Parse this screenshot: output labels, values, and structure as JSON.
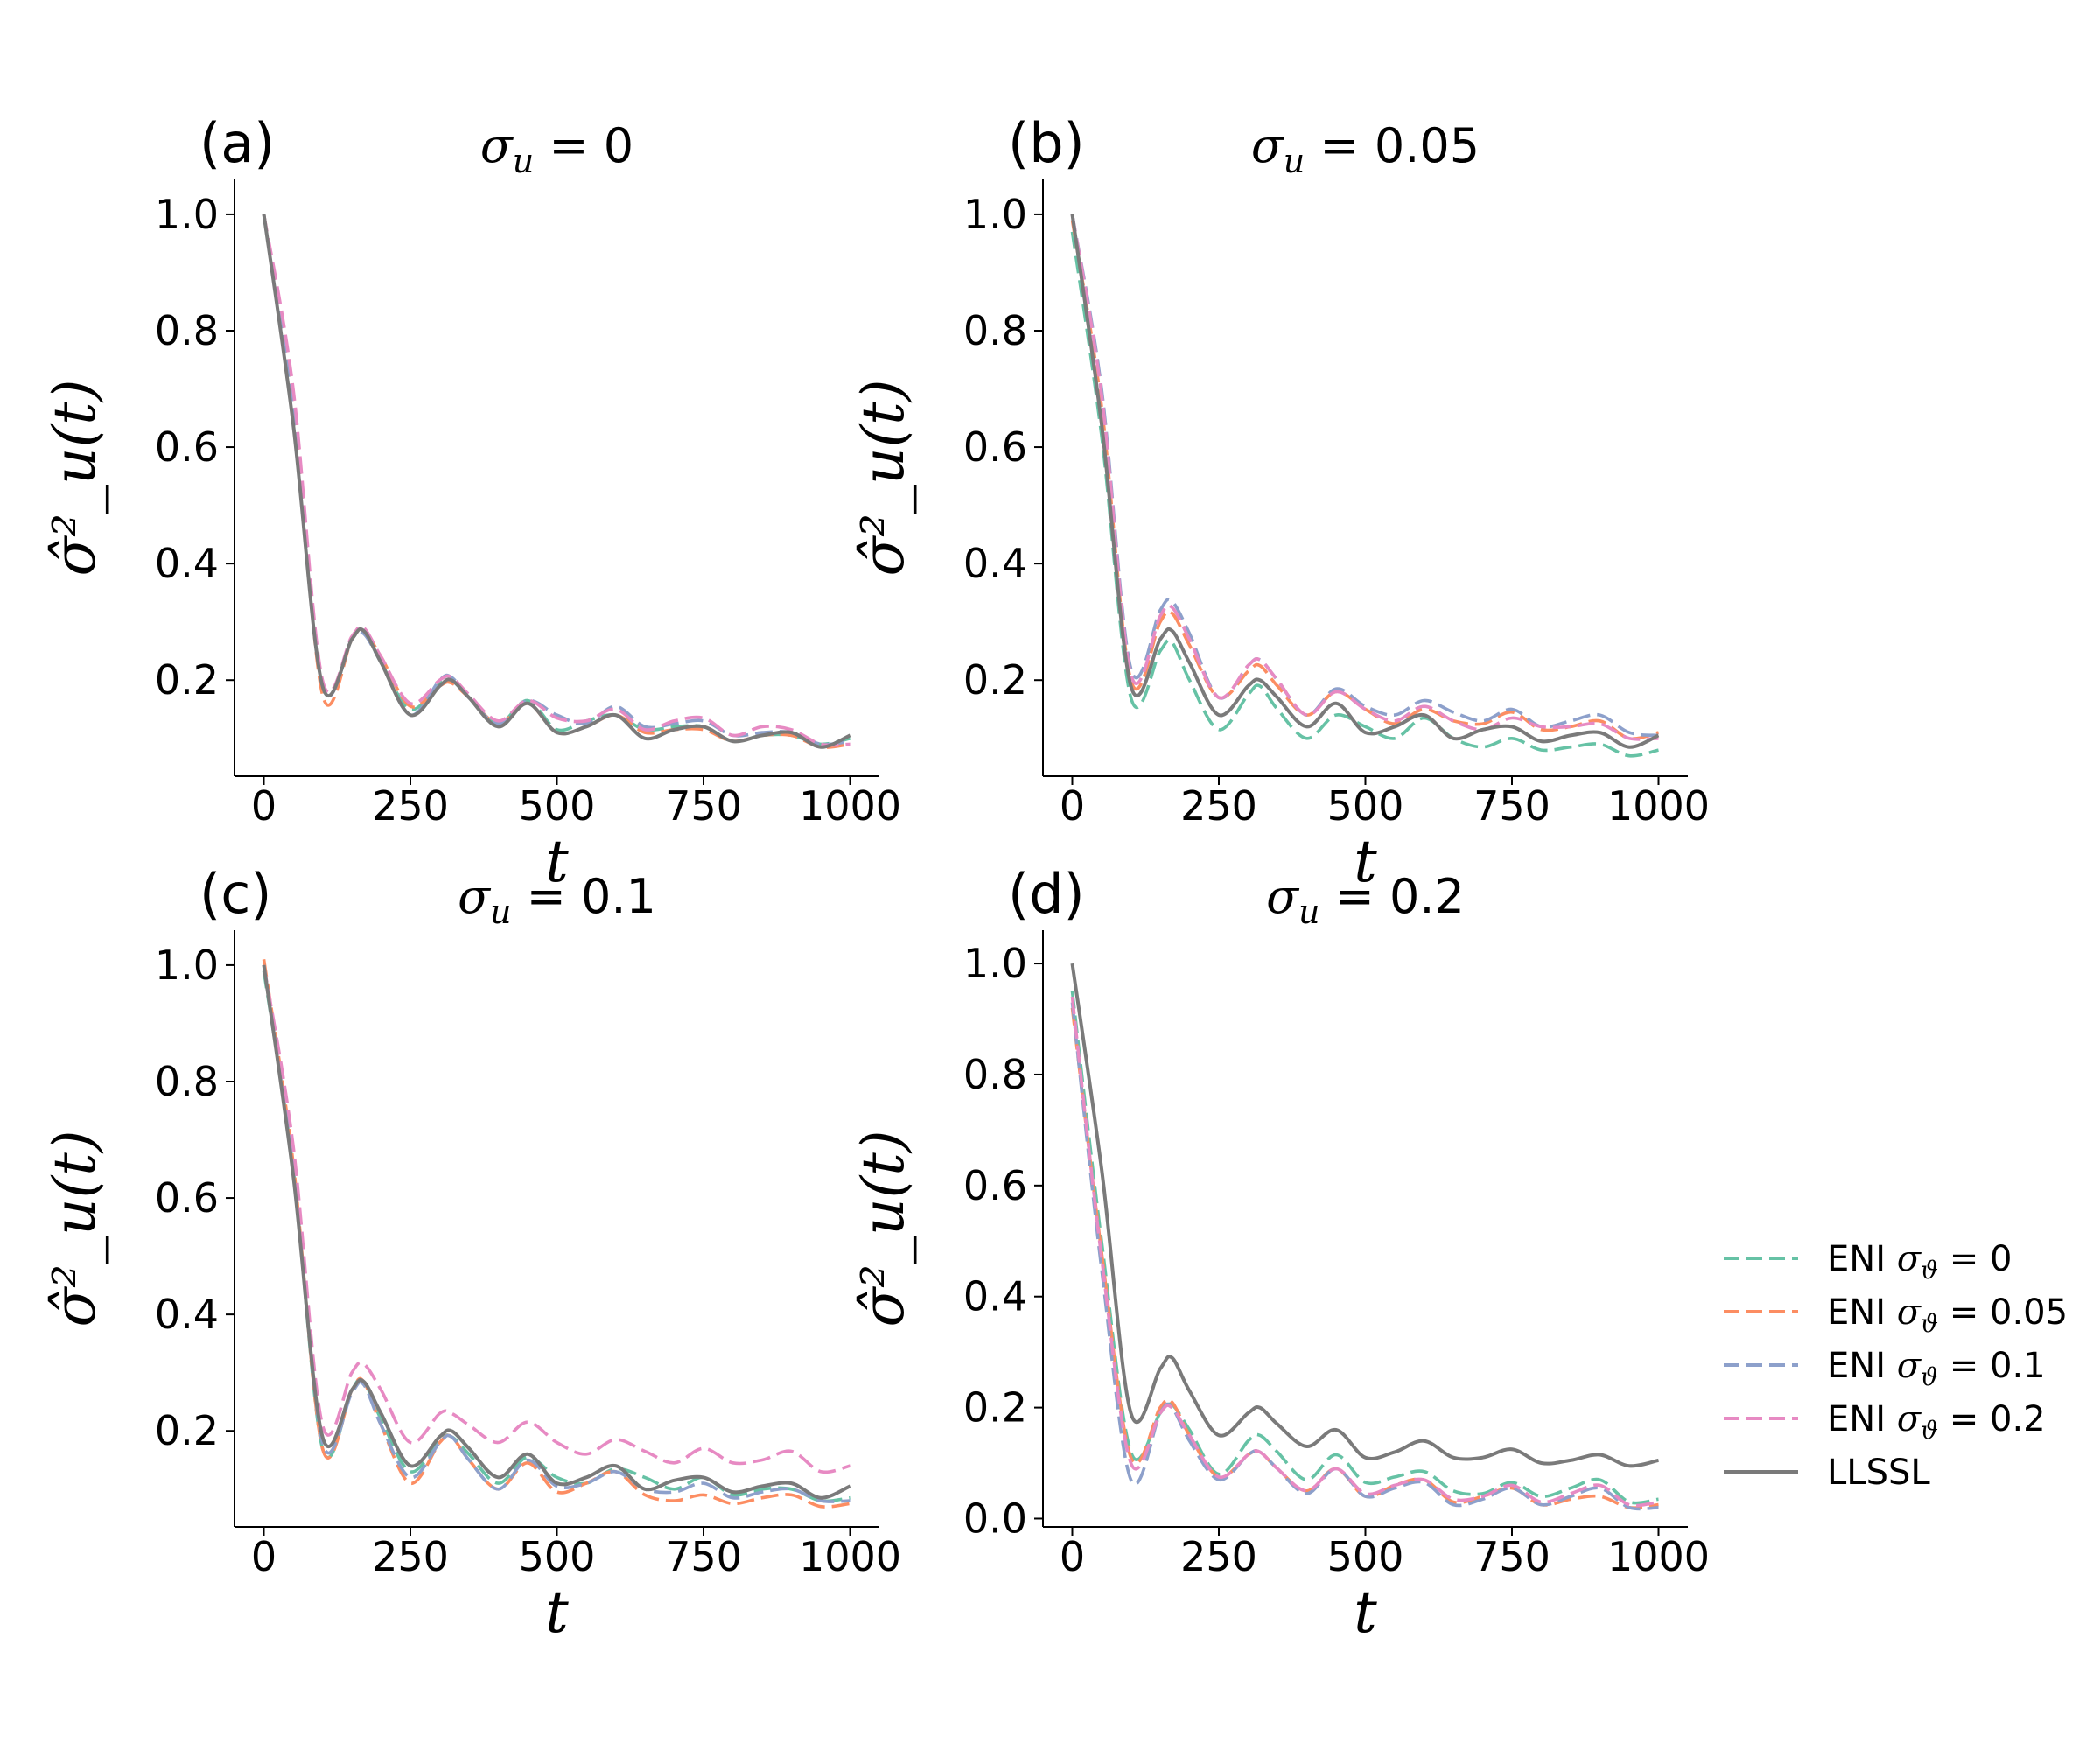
{
  "chart_data": [
    {
      "type": "line",
      "panel_label": "(a)",
      "title": "σ_u = 0",
      "title_parts": {
        "symbol": "σ",
        "subscript": "u",
        "rest": " = 0"
      },
      "xlabel": "t",
      "ylabel": "σ̂²_u(t)",
      "xlim": [
        -50,
        1050
      ],
      "ylim": [
        0.035,
        1.06
      ],
      "xticks": [
        0,
        250,
        500,
        750,
        1000
      ],
      "xtick_labels": [
        "0",
        "250",
        "500",
        "750",
        "1000"
      ],
      "yticks": [
        0.2,
        0.4,
        0.6,
        0.8,
        1.0
      ],
      "ytick_labels": [
        "0.2",
        "0.4",
        "0.6",
        "0.8",
        "1.0"
      ],
      "x": [
        0,
        50,
        100,
        150,
        170,
        200,
        250,
        300,
        320,
        350,
        400,
        450,
        500,
        550,
        600,
        650,
        700,
        750,
        800,
        850,
        900,
        950,
        1000
      ],
      "series": [
        {
          "name": "ENI σϑ = 0",
          "values": [
            1.0,
            0.65,
            0.19,
            0.27,
            0.285,
            0.23,
            0.15,
            0.195,
            0.2,
            0.17,
            0.125,
            0.165,
            0.115,
            0.13,
            0.14,
            0.115,
            0.12,
            0.12,
            0.095,
            0.105,
            0.105,
            0.09,
            0.1
          ]
        },
        {
          "name": "ENI σϑ = 0.05",
          "values": [
            1.0,
            0.68,
            0.175,
            0.27,
            0.285,
            0.24,
            0.155,
            0.19,
            0.195,
            0.17,
            0.125,
            0.16,
            0.11,
            0.12,
            0.14,
            0.11,
            0.115,
            0.115,
            0.095,
            0.105,
            0.105,
            0.085,
            0.09
          ]
        },
        {
          "name": "ENI σϑ = 0.1",
          "values": [
            1.0,
            0.66,
            0.19,
            0.27,
            0.28,
            0.23,
            0.14,
            0.2,
            0.205,
            0.17,
            0.125,
            0.165,
            0.14,
            0.125,
            0.155,
            0.12,
            0.125,
            0.13,
            0.105,
            0.11,
            0.11,
            0.09,
            0.095
          ]
        },
        {
          "name": "ENI σϑ = 0.2",
          "values": [
            1.0,
            0.7,
            0.2,
            0.275,
            0.29,
            0.24,
            0.16,
            0.2,
            0.205,
            0.175,
            0.13,
            0.165,
            0.135,
            0.13,
            0.15,
            0.115,
            0.13,
            0.135,
            0.105,
            0.12,
            0.115,
            0.09,
            0.09
          ]
        },
        {
          "name": "LLSSL",
          "values": [
            1.0,
            0.64,
            0.19,
            0.27,
            0.285,
            0.23,
            0.14,
            0.19,
            0.2,
            0.17,
            0.12,
            0.16,
            0.11,
            0.12,
            0.14,
            0.1,
            0.115,
            0.12,
            0.095,
            0.105,
            0.11,
            0.085,
            0.105
          ]
        }
      ]
    },
    {
      "type": "line",
      "panel_label": "(b)",
      "title": "σ_u = 0.05",
      "title_parts": {
        "symbol": "σ",
        "subscript": "u",
        "rest": " = 0.05"
      },
      "xlabel": "t",
      "ylabel": "σ̂²_u(t)",
      "xlim": [
        -50,
        1050
      ],
      "ylim": [
        0.035,
        1.06
      ],
      "xticks": [
        0,
        250,
        500,
        750,
        1000
      ],
      "xtick_labels": [
        "0",
        "250",
        "500",
        "750",
        "1000"
      ],
      "yticks": [
        0.2,
        0.4,
        0.6,
        0.8,
        1.0
      ],
      "ytick_labels": [
        "0.2",
        "0.4",
        "0.6",
        "0.8",
        "1.0"
      ],
      "x": [
        0,
        50,
        100,
        150,
        170,
        200,
        250,
        300,
        320,
        350,
        400,
        450,
        500,
        550,
        600,
        650,
        700,
        750,
        800,
        850,
        900,
        950,
        1000
      ],
      "series": [
        {
          "name": "ENI σϑ = 0",
          "values": [
            0.97,
            0.62,
            0.17,
            0.25,
            0.265,
            0.2,
            0.115,
            0.175,
            0.19,
            0.15,
            0.1,
            0.14,
            0.12,
            0.1,
            0.135,
            0.1,
            0.085,
            0.1,
            0.08,
            0.085,
            0.09,
            0.07,
            0.08
          ]
        },
        {
          "name": "ENI σϑ = 0.05",
          "values": [
            0.99,
            0.67,
            0.2,
            0.3,
            0.315,
            0.26,
            0.17,
            0.215,
            0.225,
            0.19,
            0.14,
            0.18,
            0.15,
            0.125,
            0.15,
            0.13,
            0.125,
            0.145,
            0.115,
            0.12,
            0.13,
            0.1,
            0.11
          ]
        },
        {
          "name": "ENI σϑ = 0.1",
          "values": [
            1.0,
            0.7,
            0.22,
            0.32,
            0.335,
            0.28,
            0.17,
            0.225,
            0.235,
            0.2,
            0.14,
            0.185,
            0.155,
            0.14,
            0.165,
            0.145,
            0.13,
            0.15,
            0.12,
            0.13,
            0.14,
            0.11,
            0.105
          ]
        },
        {
          "name": "ENI σϑ = 0.2",
          "values": [
            1.0,
            0.69,
            0.21,
            0.31,
            0.325,
            0.27,
            0.17,
            0.225,
            0.235,
            0.2,
            0.14,
            0.18,
            0.15,
            0.13,
            0.155,
            0.13,
            0.115,
            0.135,
            0.12,
            0.12,
            0.125,
            0.1,
            0.1
          ]
        },
        {
          "name": "LLSSL",
          "values": [
            1.0,
            0.64,
            0.19,
            0.27,
            0.285,
            0.23,
            0.14,
            0.19,
            0.2,
            0.17,
            0.12,
            0.16,
            0.11,
            0.12,
            0.14,
            0.1,
            0.115,
            0.12,
            0.095,
            0.105,
            0.11,
            0.085,
            0.105
          ]
        }
      ]
    },
    {
      "type": "line",
      "panel_label": "(c)",
      "title": "σ_u = 0.1",
      "title_parts": {
        "symbol": "σ",
        "subscript": "u",
        "rest": " = 0.1"
      },
      "xlabel": "t",
      "ylabel": "σ̂²_u(t)",
      "xlim": [
        -50,
        1050
      ],
      "ylim": [
        0.035,
        1.06
      ],
      "xticks": [
        0,
        250,
        500,
        750,
        1000
      ],
      "xtick_labels": [
        "0",
        "250",
        "500",
        "750",
        "1000"
      ],
      "yticks": [
        0.2,
        0.4,
        0.6,
        0.8,
        1.0
      ],
      "ytick_labels": [
        "0.2",
        "0.4",
        "0.6",
        "0.8",
        "1.0"
      ],
      "x": [
        0,
        50,
        100,
        150,
        170,
        200,
        250,
        300,
        320,
        350,
        400,
        450,
        500,
        550,
        600,
        650,
        700,
        750,
        800,
        850,
        900,
        950,
        1000
      ],
      "series": [
        {
          "name": "ENI σϑ = 0",
          "values": [
            0.99,
            0.65,
            0.17,
            0.27,
            0.285,
            0.22,
            0.13,
            0.185,
            0.19,
            0.16,
            0.11,
            0.155,
            0.12,
            0.11,
            0.135,
            0.12,
            0.1,
            0.12,
            0.09,
            0.1,
            0.1,
            0.08,
            0.085
          ]
        },
        {
          "name": "ENI σϑ = 0.05",
          "values": [
            1.01,
            0.66,
            0.17,
            0.27,
            0.285,
            0.21,
            0.11,
            0.18,
            0.19,
            0.15,
            0.1,
            0.145,
            0.095,
            0.11,
            0.13,
            0.09,
            0.08,
            0.09,
            0.075,
            0.085,
            0.09,
            0.07,
            0.075
          ]
        },
        {
          "name": "ENI σϑ = 0.1",
          "values": [
            1.0,
            0.66,
            0.18,
            0.265,
            0.28,
            0.21,
            0.12,
            0.18,
            0.19,
            0.15,
            0.1,
            0.15,
            0.105,
            0.11,
            0.13,
            0.1,
            0.095,
            0.11,
            0.085,
            0.095,
            0.1,
            0.08,
            0.08
          ]
        },
        {
          "name": "ENI σϑ = 0.2",
          "values": [
            1.0,
            0.69,
            0.21,
            0.3,
            0.315,
            0.27,
            0.18,
            0.23,
            0.23,
            0.21,
            0.18,
            0.215,
            0.18,
            0.16,
            0.185,
            0.165,
            0.145,
            0.17,
            0.145,
            0.15,
            0.165,
            0.13,
            0.14
          ]
        },
        {
          "name": "LLSSL",
          "values": [
            1.0,
            0.64,
            0.19,
            0.27,
            0.285,
            0.23,
            0.14,
            0.19,
            0.2,
            0.17,
            0.12,
            0.16,
            0.11,
            0.12,
            0.14,
            0.1,
            0.115,
            0.12,
            0.095,
            0.105,
            0.11,
            0.085,
            0.105
          ]
        }
      ]
    },
    {
      "type": "line",
      "panel_label": "(d)",
      "title": "σ_u = 0.2",
      "title_parts": {
        "symbol": "σ",
        "subscript": "u",
        "rest": " = 0.2"
      },
      "xlabel": "t",
      "ylabel": "σ̂²_u(t)",
      "xlim": [
        -50,
        1050
      ],
      "ylim": [
        -0.015,
        1.06
      ],
      "xticks": [
        0,
        250,
        500,
        750,
        1000
      ],
      "xtick_labels": [
        "0",
        "250",
        "500",
        "750",
        "1000"
      ],
      "yticks": [
        0.0,
        0.2,
        0.4,
        0.6,
        0.8,
        1.0
      ],
      "ytick_labels": [
        "0.0",
        "0.2",
        "0.4",
        "0.6",
        "0.8",
        "1.0"
      ],
      "x": [
        0,
        50,
        100,
        150,
        170,
        200,
        250,
        300,
        320,
        350,
        400,
        450,
        500,
        550,
        600,
        650,
        700,
        750,
        800,
        850,
        900,
        950,
        1000
      ],
      "series": [
        {
          "name": "ENI σϑ = 0",
          "values": [
            0.95,
            0.5,
            0.12,
            0.19,
            0.205,
            0.16,
            0.08,
            0.14,
            0.15,
            0.12,
            0.07,
            0.115,
            0.065,
            0.075,
            0.085,
            0.05,
            0.045,
            0.065,
            0.04,
            0.055,
            0.07,
            0.03,
            0.035
          ]
        },
        {
          "name": "ENI σϑ = 0.05",
          "values": [
            0.92,
            0.48,
            0.11,
            0.2,
            0.21,
            0.15,
            0.075,
            0.115,
            0.12,
            0.09,
            0.05,
            0.09,
            0.04,
            0.06,
            0.07,
            0.03,
            0.04,
            0.055,
            0.025,
            0.035,
            0.04,
            0.02,
            0.025
          ]
        },
        {
          "name": "ENI σϑ = 0.1",
          "values": [
            0.93,
            0.45,
            0.07,
            0.19,
            0.2,
            0.14,
            0.07,
            0.115,
            0.12,
            0.09,
            0.045,
            0.09,
            0.04,
            0.055,
            0.065,
            0.025,
            0.035,
            0.055,
            0.025,
            0.04,
            0.055,
            0.02,
            0.02
          ]
        },
        {
          "name": "ENI σϑ = 0.2",
          "values": [
            0.94,
            0.47,
            0.1,
            0.19,
            0.2,
            0.15,
            0.075,
            0.115,
            0.12,
            0.09,
            0.05,
            0.09,
            0.045,
            0.06,
            0.07,
            0.035,
            0.04,
            0.06,
            0.03,
            0.045,
            0.06,
            0.025,
            0.03
          ]
        },
        {
          "name": "LLSSL",
          "values": [
            1.0,
            0.63,
            0.19,
            0.27,
            0.29,
            0.23,
            0.15,
            0.19,
            0.2,
            0.17,
            0.13,
            0.16,
            0.11,
            0.12,
            0.14,
            0.11,
            0.11,
            0.125,
            0.1,
            0.105,
            0.115,
            0.095,
            0.105
          ]
        }
      ]
    }
  ],
  "legend": {
    "placement": "right",
    "items": [
      {
        "label": "ENI σϑ = 0",
        "prefix": "ENI ",
        "symbol": "σ",
        "subscript": "ϑ",
        "rest": " = 0",
        "color": "#66c2a5",
        "style": "dashed"
      },
      {
        "label": "ENI σϑ = 0.05",
        "prefix": "ENI ",
        "symbol": "σ",
        "subscript": "ϑ",
        "rest": " = 0.05",
        "color": "#fc8d62",
        "style": "dashed"
      },
      {
        "label": "ENI σϑ = 0.1",
        "prefix": "ENI ",
        "symbol": "σ",
        "subscript": "ϑ",
        "rest": " = 0.1",
        "color": "#8da0cb",
        "style": "dashed"
      },
      {
        "label": "ENI σϑ = 0.2",
        "prefix": "ENI ",
        "symbol": "σ",
        "subscript": "ϑ",
        "rest": " = 0.2",
        "color": "#e78ac3",
        "style": "dashed"
      },
      {
        "label": "LLSSL",
        "prefix": "LLSSL",
        "symbol": "",
        "subscript": "",
        "rest": "",
        "color": "#7a7a7a",
        "style": "solid"
      }
    ]
  },
  "colors": {
    "eni_0": "#66c2a5",
    "eni_005": "#fc8d62",
    "eni_01": "#8da0cb",
    "eni_02": "#e78ac3",
    "llssl": "#7a7a7a",
    "axis": "#000000"
  }
}
